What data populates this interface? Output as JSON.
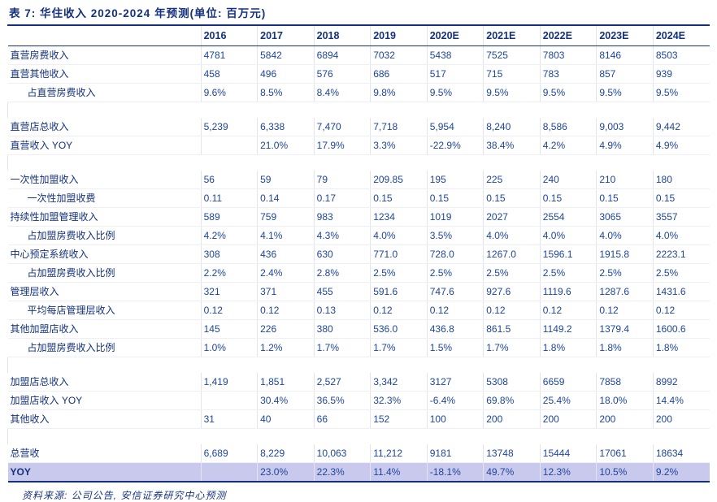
{
  "title": "表 7: 华住收入 2020-2024 年预测(单位: 百万元)",
  "source_note": "资料来源: 公司公告, 安信证券研究中心预测",
  "colors": {
    "navy_text": "#14327c",
    "value_text": "#1d459c",
    "highlight_row_bg": "#c9c9ed",
    "faint_grid": "#e4e4f0"
  },
  "chart_data": {
    "type": "table",
    "title": "表 7: 华住收入 2020-2024 年预测(单位: 百万元)",
    "columns": [
      "2016",
      "2017",
      "2018",
      "2019",
      "2020E",
      "2021E",
      "2022E",
      "2023E",
      "2024E"
    ]
  },
  "table": {
    "columns": [
      "2016",
      "2017",
      "2018",
      "2019",
      "2020E",
      "2021E",
      "2022E",
      "2023E",
      "2024E"
    ],
    "rows": [
      {
        "label": "直营房费收入",
        "indent": false,
        "values": [
          "4781",
          "5842",
          "6894",
          "7032",
          "5438",
          "7525",
          "7803",
          "8146",
          "8503"
        ]
      },
      {
        "label": "直营其他收入",
        "indent": false,
        "values": [
          "458",
          "496",
          "576",
          "686",
          "517",
          "715",
          "783",
          "857",
          "939"
        ]
      },
      {
        "label": "占直营房费收入",
        "indent": true,
        "values": [
          "9.6%",
          "8.5%",
          "8.4%",
          "9.8%",
          "9.5%",
          "9.5%",
          "9.5%",
          "9.5%",
          "9.5%"
        ]
      },
      {
        "type": "spacer"
      },
      {
        "label": "直营店总收入",
        "indent": false,
        "values": [
          "5,239",
          "6,338",
          "7,470",
          "7,718",
          "5,954",
          "8,240",
          "8,586",
          "9,003",
          "9,442"
        ]
      },
      {
        "label": "直营收入 YOY",
        "indent": false,
        "values": [
          "",
          "21.0%",
          "17.9%",
          "3.3%",
          "-22.9%",
          "38.4%",
          "4.2%",
          "4.9%",
          "4.9%"
        ]
      },
      {
        "type": "spacer"
      },
      {
        "label": "一次性加盟收入",
        "indent": false,
        "values": [
          "56",
          "59",
          "79",
          "209.85",
          "195",
          "225",
          "240",
          "210",
          "180"
        ]
      },
      {
        "label": "一次性加盟收费",
        "indent": true,
        "values": [
          "0.11",
          "0.14",
          "0.17",
          "0.15",
          "0.15",
          "0.15",
          "0.15",
          "0.15",
          "0.15"
        ]
      },
      {
        "label": "持续性加盟管理收入",
        "indent": false,
        "values": [
          "589",
          "759",
          "983",
          "1234",
          "1019",
          "2027",
          "2554",
          "3065",
          "3557"
        ]
      },
      {
        "label": "占加盟房费收入比例",
        "indent": true,
        "values": [
          "4.2%",
          "4.1%",
          "4.3%",
          "4.0%",
          "3.5%",
          "4.0%",
          "4.0%",
          "4.0%",
          "4.0%"
        ]
      },
      {
        "label": "中心预定系统收入",
        "indent": false,
        "values": [
          "308",
          "436",
          "630",
          "771.0",
          "728.0",
          "1267.0",
          "1596.1",
          "1915.8",
          "2223.1"
        ]
      },
      {
        "label": "占加盟房费收入比例",
        "indent": true,
        "values": [
          "2.2%",
          "2.4%",
          "2.8%",
          "2.5%",
          "2.5%",
          "2.5%",
          "2.5%",
          "2.5%",
          "2.5%"
        ]
      },
      {
        "label": "管理层收入",
        "indent": false,
        "values": [
          "321",
          "371",
          "455",
          "591.6",
          "747.6",
          "927.6",
          "1119.6",
          "1287.6",
          "1431.6"
        ]
      },
      {
        "label": "平均每店管理层收入",
        "indent": true,
        "values": [
          "0.12",
          "0.12",
          "0.13",
          "0.12",
          "0.12",
          "0.12",
          "0.12",
          "0.12",
          "0.12"
        ]
      },
      {
        "label": "其他加盟店收入",
        "indent": false,
        "values": [
          "145",
          "226",
          "380",
          "536.0",
          "436.8",
          "861.5",
          "1149.2",
          "1379.4",
          "1600.6"
        ]
      },
      {
        "label": "占加盟房费收入比例",
        "indent": true,
        "values": [
          "1.0%",
          "1.2%",
          "1.7%",
          "1.7%",
          "1.5%",
          "1.7%",
          "1.8%",
          "1.8%",
          "1.8%"
        ]
      },
      {
        "type": "spacer"
      },
      {
        "label": "加盟店总收入",
        "indent": false,
        "values": [
          "1,419",
          "1,851",
          "2,527",
          "3,342",
          "3127",
          "5308",
          "6659",
          "7858",
          "8992"
        ]
      },
      {
        "label": "加盟店收入 YOY",
        "indent": false,
        "values": [
          "",
          "30.4%",
          "36.5%",
          "32.3%",
          "-6.4%",
          "69.8%",
          "25.4%",
          "18.0%",
          "14.4%"
        ]
      },
      {
        "label": "其他收入",
        "indent": false,
        "values": [
          "31",
          "40",
          "66",
          "152",
          "100",
          "200",
          "200",
          "200",
          "200"
        ]
      },
      {
        "type": "spacer"
      },
      {
        "label": "总营收",
        "indent": false,
        "values": [
          "6,689",
          "8,229",
          "10,063",
          "11,212",
          "9181",
          "13748",
          "15444",
          "17061",
          "18634"
        ]
      },
      {
        "label": "YOY",
        "indent": false,
        "style": "highlight",
        "values": [
          "",
          "23.0%",
          "22.3%",
          "11.4%",
          "-18.1%",
          "49.7%",
          "12.3%",
          "10.5%",
          "9.2%"
        ]
      }
    ]
  }
}
